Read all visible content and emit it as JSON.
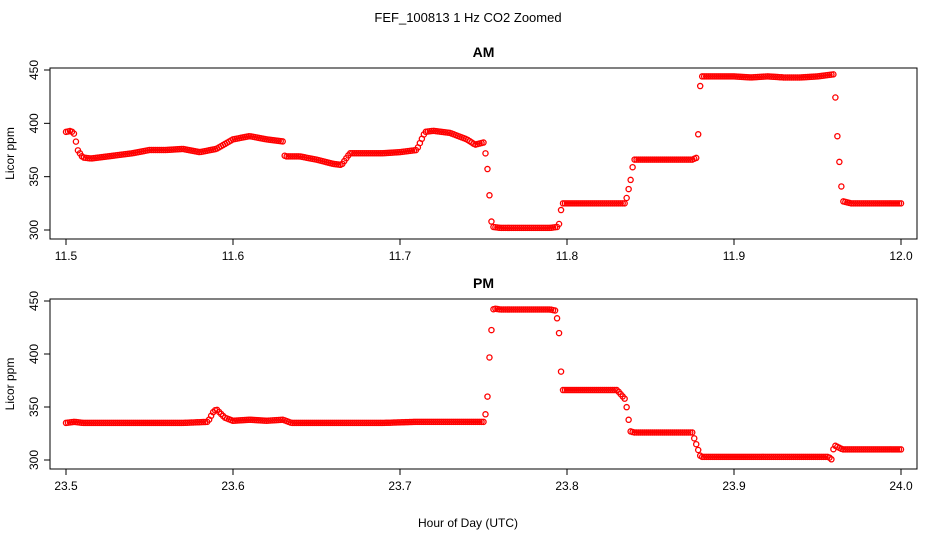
{
  "figure": {
    "title": "FEF_100813  1 Hz CO2 Zoomed",
    "xlabel": "Hour of Day (UTC)",
    "series_color": "#ff0000"
  },
  "chart_data": [
    {
      "type": "scatter",
      "title": "AM",
      "xlabel": "",
      "ylabel": "Licor ppm",
      "xlim": [
        11.5,
        12.0
      ],
      "ylim": [
        300,
        450
      ],
      "xticks": [
        "11.5",
        "11.6",
        "11.7",
        "11.8",
        "11.9",
        "12.0"
      ],
      "yticks": [
        "300",
        "350",
        "400",
        "450"
      ],
      "marker": "open-circle",
      "color": "#ff0000",
      "grid": false,
      "legend": "none",
      "x": [
        11.5,
        11.503,
        11.505,
        11.507,
        11.51,
        11.515,
        11.52,
        11.53,
        11.54,
        11.55,
        11.56,
        11.57,
        11.58,
        11.59,
        11.6,
        11.61,
        11.62,
        11.63,
        11.631,
        11.64,
        11.65,
        11.66,
        11.665,
        11.67,
        11.68,
        11.69,
        11.7,
        11.71,
        11.715,
        11.72,
        11.73,
        11.74,
        11.745,
        11.75,
        11.752,
        11.755,
        11.76,
        11.77,
        11.78,
        11.79,
        11.795,
        11.797,
        11.8,
        11.81,
        11.82,
        11.83,
        11.835,
        11.838,
        11.84,
        11.85,
        11.86,
        11.87,
        11.875,
        11.878,
        11.88,
        11.89,
        11.9,
        11.91,
        11.92,
        11.93,
        11.94,
        11.95,
        11.96,
        11.962,
        11.965,
        11.97,
        11.98,
        11.99,
        12.0
      ],
      "y": [
        392,
        393,
        390,
        375,
        368,
        367,
        368,
        370,
        372,
        375,
        375,
        376,
        373,
        376,
        385,
        388,
        385,
        383,
        369,
        369,
        366,
        362,
        361,
        372,
        372,
        372,
        373,
        375,
        392,
        393,
        391,
        385,
        380,
        382,
        365,
        303,
        302,
        302,
        302,
        302,
        303,
        325,
        325,
        325,
        325,
        325,
        325,
        346,
        366,
        366,
        366,
        366,
        366,
        368,
        444,
        444,
        444,
        443,
        444,
        443,
        443,
        444,
        446,
        385,
        327,
        325,
        325,
        325,
        325
      ]
    },
    {
      "type": "scatter",
      "title": "PM",
      "xlabel": "Hour of Day (UTC)",
      "ylabel": "Licor ppm",
      "xlim": [
        23.5,
        24.0
      ],
      "ylim": [
        300,
        450
      ],
      "xticks": [
        "23.5",
        "23.6",
        "23.7",
        "23.8",
        "23.9",
        "24.0"
      ],
      "yticks": [
        "300",
        "350",
        "400",
        "450"
      ],
      "marker": "open-circle",
      "color": "#ff0000",
      "grid": false,
      "legend": "none",
      "x": [
        23.5,
        23.505,
        23.51,
        23.53,
        23.55,
        23.57,
        23.585,
        23.588,
        23.59,
        23.595,
        23.6,
        23.61,
        23.62,
        23.63,
        23.635,
        23.65,
        23.67,
        23.69,
        23.71,
        23.73,
        23.75,
        23.752,
        23.754,
        23.756,
        23.76,
        23.77,
        23.78,
        23.79,
        23.793,
        23.795,
        23.797,
        23.8,
        23.81,
        23.82,
        23.83,
        23.835,
        23.838,
        23.84,
        23.85,
        23.86,
        23.87,
        23.875,
        23.878,
        23.88,
        23.89,
        23.9,
        23.91,
        23.92,
        23.93,
        23.94,
        23.95,
        23.957,
        23.958,
        23.96,
        23.965,
        23.97,
        23.98,
        23.99,
        24.0
      ],
      "y": [
        335,
        336,
        335,
        335,
        335,
        335,
        336,
        345,
        348,
        340,
        337,
        338,
        337,
        338,
        335,
        335,
        335,
        335,
        336,
        336,
        336,
        348,
        410,
        443,
        442,
        442,
        442,
        442,
        441,
        427,
        366,
        366,
        366,
        366,
        366,
        357,
        327,
        326,
        326,
        326,
        326,
        326,
        312,
        303,
        303,
        303,
        303,
        303,
        303,
        303,
        303,
        303,
        298,
        314,
        310,
        310,
        310,
        310,
        310
      ]
    }
  ]
}
